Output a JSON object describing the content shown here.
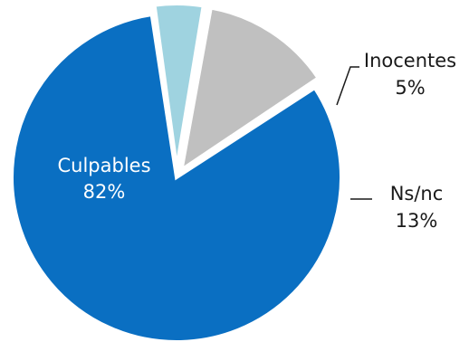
{
  "chart_data": {
    "type": "pie",
    "title": "",
    "slices": [
      {
        "label": "Culpables",
        "value": 82,
        "value_label": "82%",
        "color": "#0a6fc2",
        "label_color": "#ffffff",
        "label_placement": "inside"
      },
      {
        "label": "Inocentes",
        "value": 5,
        "value_label": "5%",
        "color": "#9fd3e0",
        "label_color": "#1a1a1a",
        "label_placement": "outside"
      },
      {
        "label": "Ns/nc",
        "value": 13,
        "value_label": "13%",
        "color": "#c0c0c0",
        "label_color": "#1a1a1a",
        "label_placement": "outside"
      }
    ],
    "legend": "none",
    "exploded_slices": [
      "Inocentes",
      "Ns/nc"
    ]
  }
}
